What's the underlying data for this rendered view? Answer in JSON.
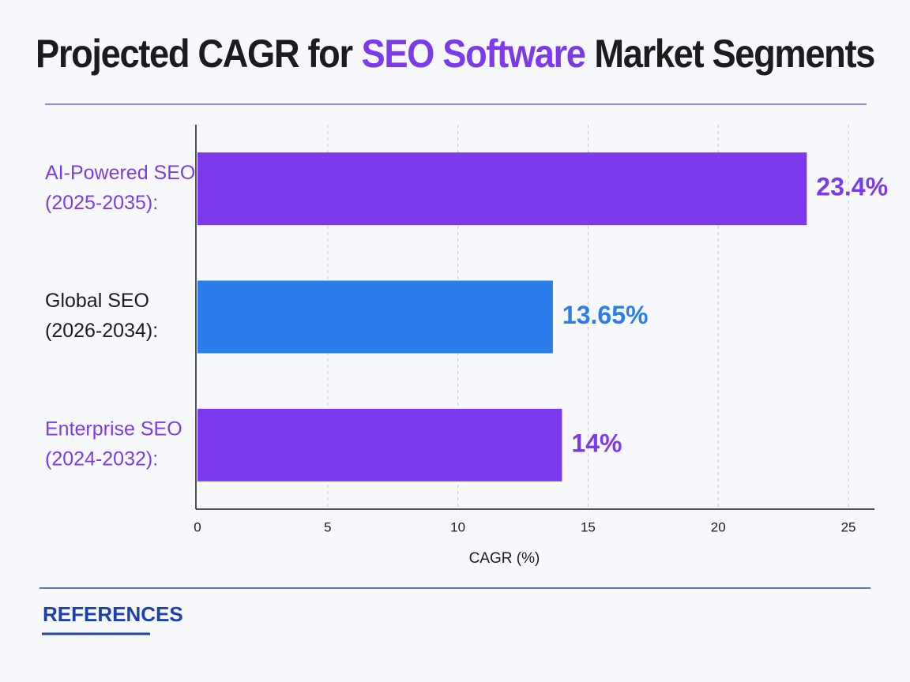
{
  "chart_data": {
    "type": "bar",
    "orientation": "horizontal",
    "title_parts": [
      {
        "text": "Projected CAGR for",
        "color": "#1c1c1e"
      },
      {
        "text": "SEO Software",
        "color": "#7c3aed"
      },
      {
        "text": "Market Segments",
        "color": "#1c1c1e"
      }
    ],
    "categories": [
      [
        "AI-Powered SEO",
        "(2025-2035):"
      ],
      [
        "Global SEO",
        "(2026-2034):"
      ],
      [
        "Enterprise SEO",
        "(2024-2032):"
      ]
    ],
    "category_colors": [
      "#7c3aed",
      "#1c1c1e",
      "#7c3aed"
    ],
    "values": [
      23.4,
      13.65,
      14
    ],
    "value_labels": [
      "23.4%",
      "13.65%",
      "14%"
    ],
    "colors": [
      "#7c3aed",
      "#2b7de9",
      "#7c3aed"
    ],
    "xlim": [
      0,
      26
    ],
    "xticks": [
      0,
      5,
      10,
      15,
      20,
      25
    ],
    "xlabel": "CAGR (%)",
    "grid": true,
    "references_heading": "REFERENCES"
  }
}
